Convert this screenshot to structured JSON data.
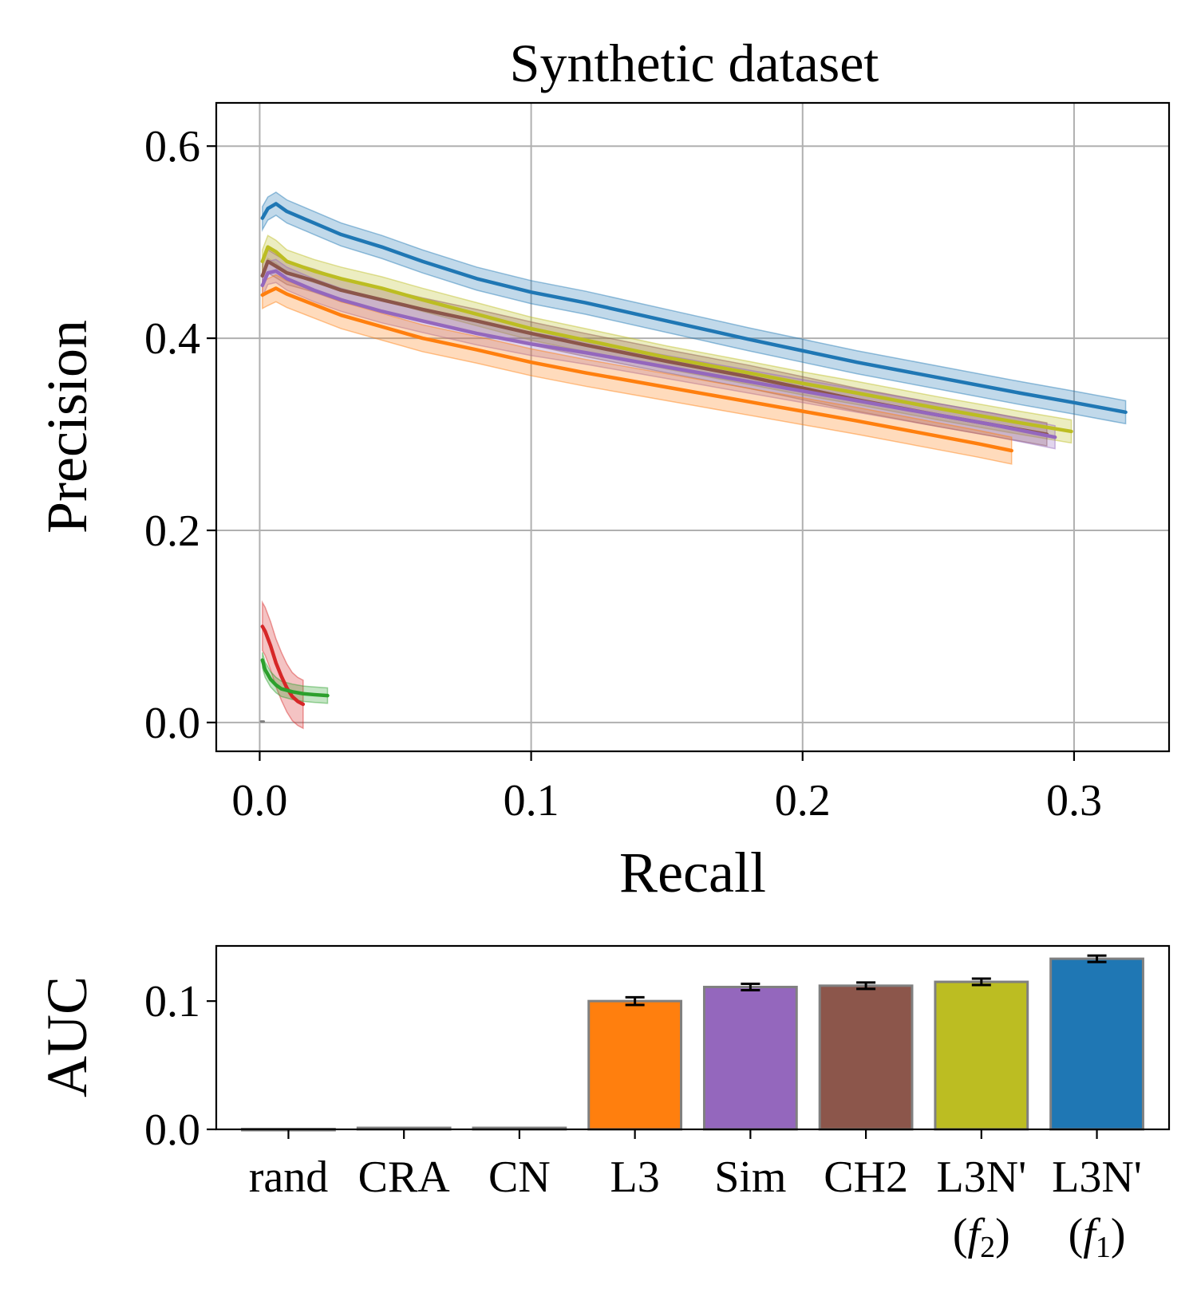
{
  "chart_data": [
    {
      "type": "line",
      "title": "Synthetic dataset",
      "xlabel": "Recall",
      "ylabel": "Precision",
      "xlim": [
        -0.016,
        0.335
      ],
      "ylim": [
        -0.03,
        0.645
      ],
      "xticks": [
        0.0,
        0.1,
        0.2,
        0.3
      ],
      "xtick_labels": [
        "0.0",
        "0.1",
        "0.2",
        "0.3"
      ],
      "yticks": [
        0.0,
        0.2,
        0.4,
        0.6
      ],
      "ytick_labels": [
        "0.0",
        "0.2",
        "0.4",
        "0.6"
      ],
      "grid": true,
      "series": [
        {
          "color": "#1f77b4",
          "band": 0.012,
          "x": [
            0.001,
            0.003,
            0.006,
            0.01,
            0.02,
            0.03,
            0.045,
            0.06,
            0.08,
            0.1,
            0.12,
            0.15,
            0.18,
            0.2,
            0.22,
            0.25,
            0.28,
            0.3,
            0.319
          ],
          "y": [
            0.525,
            0.535,
            0.54,
            0.532,
            0.52,
            0.508,
            0.495,
            0.48,
            0.462,
            0.448,
            0.437,
            0.418,
            0.399,
            0.387,
            0.375,
            0.359,
            0.343,
            0.333,
            0.323
          ]
        },
        {
          "color": "#bcbd22",
          "band": 0.012,
          "x": [
            0.001,
            0.003,
            0.006,
            0.01,
            0.02,
            0.03,
            0.045,
            0.06,
            0.08,
            0.1,
            0.12,
            0.15,
            0.18,
            0.2,
            0.22,
            0.25,
            0.28,
            0.299
          ],
          "y": [
            0.48,
            0.495,
            0.49,
            0.48,
            0.47,
            0.462,
            0.452,
            0.44,
            0.425,
            0.41,
            0.398,
            0.38,
            0.364,
            0.353,
            0.343,
            0.327,
            0.312,
            0.303
          ]
        },
        {
          "color": "#8c564b",
          "band": 0.012,
          "x": [
            0.001,
            0.003,
            0.006,
            0.01,
            0.02,
            0.03,
            0.045,
            0.06,
            0.08,
            0.1,
            0.12,
            0.15,
            0.18,
            0.2,
            0.22,
            0.25,
            0.27,
            0.29
          ],
          "y": [
            0.465,
            0.48,
            0.475,
            0.468,
            0.46,
            0.45,
            0.44,
            0.43,
            0.418,
            0.405,
            0.393,
            0.376,
            0.36,
            0.348,
            0.336,
            0.32,
            0.31,
            0.3
          ]
        },
        {
          "color": "#9467bd",
          "band": 0.012,
          "x": [
            0.001,
            0.003,
            0.006,
            0.01,
            0.02,
            0.03,
            0.045,
            0.06,
            0.08,
            0.1,
            0.12,
            0.15,
            0.18,
            0.2,
            0.22,
            0.25,
            0.27,
            0.293
          ],
          "y": [
            0.455,
            0.468,
            0.47,
            0.462,
            0.45,
            0.44,
            0.428,
            0.418,
            0.405,
            0.394,
            0.385,
            0.37,
            0.355,
            0.345,
            0.335,
            0.32,
            0.31,
            0.297
          ]
        },
        {
          "color": "#ff7f0e",
          "band": 0.014,
          "x": [
            0.001,
            0.003,
            0.006,
            0.01,
            0.02,
            0.03,
            0.045,
            0.06,
            0.08,
            0.1,
            0.12,
            0.15,
            0.18,
            0.2,
            0.22,
            0.25,
            0.265,
            0.277
          ],
          "y": [
            0.445,
            0.448,
            0.452,
            0.446,
            0.435,
            0.424,
            0.412,
            0.4,
            0.388,
            0.375,
            0.364,
            0.349,
            0.334,
            0.324,
            0.314,
            0.298,
            0.29,
            0.283
          ]
        },
        {
          "color": "#d62728",
          "band": 0.025,
          "x": [
            0.001,
            0.002,
            0.004,
            0.006,
            0.008,
            0.01,
            0.012,
            0.014,
            0.016
          ],
          "y": [
            0.1,
            0.095,
            0.08,
            0.062,
            0.048,
            0.036,
            0.027,
            0.022,
            0.019
          ]
        },
        {
          "color": "#2ca02c",
          "band": 0.008,
          "x": [
            0.001,
            0.002,
            0.004,
            0.006,
            0.008,
            0.012,
            0.016,
            0.02,
            0.025
          ],
          "y": [
            0.065,
            0.055,
            0.045,
            0.039,
            0.035,
            0.032,
            0.03,
            0.029,
            0.028
          ]
        },
        {
          "color": "#7f7f7f",
          "band": 0.0,
          "x": [
            0.0005,
            0.0015
          ],
          "y": [
            0.001,
            0.001
          ]
        }
      ]
    },
    {
      "type": "bar",
      "ylabel": "AUC",
      "ylim": [
        0.0,
        0.143
      ],
      "yticks": [
        0.0,
        0.1
      ],
      "ytick_labels": [
        "0.0",
        "0.1"
      ],
      "categories": [
        "rand",
        "CRA",
        "CN",
        "L3",
        "Sim",
        "CH2",
        "L3N'",
        "L3N'"
      ],
      "category_sublabels": [
        "",
        "",
        "",
        "",
        "",
        "",
        "(f2)",
        "(f1)"
      ],
      "values": [
        0.0003,
        0.0012,
        0.0012,
        0.1,
        0.111,
        0.112,
        0.115,
        0.133
      ],
      "errors": [
        0.0,
        0.0,
        0.0,
        0.003,
        0.0025,
        0.0025,
        0.0025,
        0.0025
      ],
      "colors": [
        "#7f7f7f",
        "#7f7f7f",
        "#7f7f7f",
        "#ff7f0e",
        "#9467bd",
        "#8c564b",
        "#bcbd22",
        "#1f77b4"
      ]
    }
  ]
}
